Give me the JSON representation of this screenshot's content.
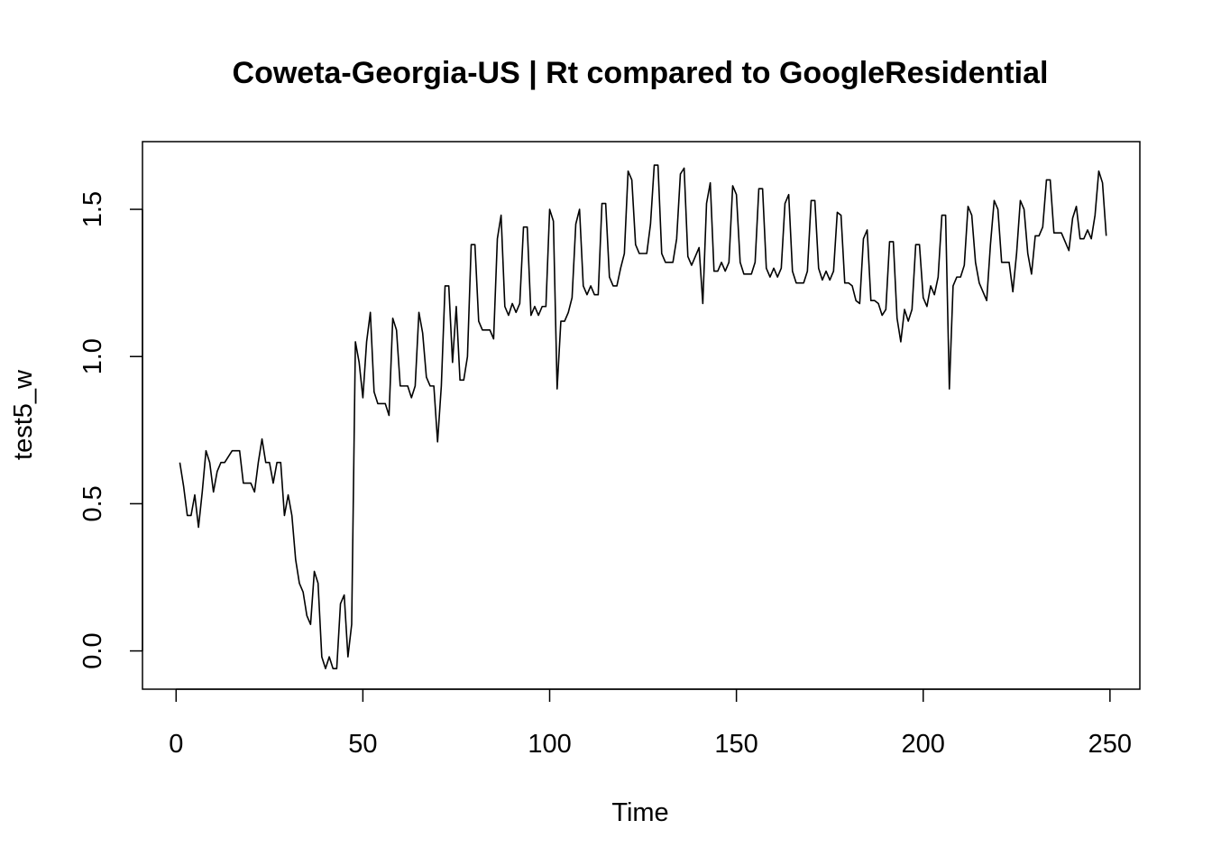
{
  "chart_data": {
    "type": "line",
    "title": "Coweta-Georgia-US | Rt compared to GoogleResidential",
    "xlabel": "Time",
    "ylabel": "test5_w",
    "xlim": [
      -9,
      258
    ],
    "ylim": [
      -0.13,
      1.73
    ],
    "x_ticks": [
      0,
      50,
      100,
      150,
      200,
      250
    ],
    "x_tick_labels": [
      "0",
      "50",
      "100",
      "150",
      "200",
      "250"
    ],
    "y_ticks": [
      0.0,
      0.5,
      1.0,
      1.5
    ],
    "y_tick_labels": [
      "0.0",
      "0.5",
      "1.0",
      "1.5"
    ],
    "grid": false,
    "line_color": "#000000",
    "series": [
      {
        "x_start": 1,
        "values": [
          0.64,
          0.56,
          0.46,
          0.46,
          0.53,
          0.42,
          0.54,
          0.68,
          0.64,
          0.54,
          0.61,
          0.64,
          0.64,
          0.66,
          0.68,
          0.68,
          0.68,
          0.57,
          0.57,
          0.57,
          0.54,
          0.64,
          0.72,
          0.64,
          0.64,
          0.57,
          0.64,
          0.64,
          0.46,
          0.53,
          0.46,
          0.31,
          0.23,
          0.2,
          0.12,
          0.09,
          0.27,
          0.23,
          -0.02,
          -0.06,
          -0.02,
          -0.06,
          -0.06,
          0.16,
          0.19,
          -0.02,
          0.09,
          1.05,
          0.98,
          0.86,
          1.05,
          1.15,
          0.88,
          0.84,
          0.84,
          0.84,
          0.8,
          1.13,
          1.09,
          0.9,
          0.9,
          0.9,
          0.86,
          0.9,
          1.15,
          1.08,
          0.93,
          0.9,
          0.9,
          0.71,
          0.9,
          1.24,
          1.24,
          0.98,
          1.17,
          0.92,
          0.92,
          1.0,
          1.38,
          1.38,
          1.12,
          1.09,
          1.09,
          1.09,
          1.06,
          1.4,
          1.48,
          1.17,
          1.14,
          1.18,
          1.15,
          1.18,
          1.44,
          1.44,
          1.14,
          1.17,
          1.14,
          1.17,
          1.17,
          1.5,
          1.46,
          0.89,
          1.12,
          1.12,
          1.15,
          1.2,
          1.45,
          1.5,
          1.24,
          1.21,
          1.24,
          1.21,
          1.21,
          1.52,
          1.52,
          1.27,
          1.24,
          1.24,
          1.3,
          1.35,
          1.63,
          1.6,
          1.38,
          1.35,
          1.35,
          1.35,
          1.45,
          1.65,
          1.65,
          1.35,
          1.32,
          1.32,
          1.32,
          1.4,
          1.62,
          1.64,
          1.34,
          1.31,
          1.34,
          1.37,
          1.18,
          1.52,
          1.59,
          1.29,
          1.29,
          1.32,
          1.29,
          1.32,
          1.58,
          1.55,
          1.32,
          1.28,
          1.28,
          1.28,
          1.32,
          1.57,
          1.57,
          1.3,
          1.27,
          1.3,
          1.27,
          1.3,
          1.52,
          1.55,
          1.29,
          1.25,
          1.25,
          1.25,
          1.29,
          1.53,
          1.53,
          1.3,
          1.26,
          1.29,
          1.26,
          1.29,
          1.49,
          1.48,
          1.25,
          1.25,
          1.24,
          1.19,
          1.18,
          1.4,
          1.43,
          1.19,
          1.19,
          1.18,
          1.14,
          1.16,
          1.39,
          1.39,
          1.13,
          1.05,
          1.16,
          1.12,
          1.16,
          1.38,
          1.38,
          1.2,
          1.17,
          1.24,
          1.21,
          1.27,
          1.48,
          1.48,
          0.89,
          1.24,
          1.27,
          1.27,
          1.31,
          1.51,
          1.48,
          1.32,
          1.25,
          1.22,
          1.19,
          1.38,
          1.53,
          1.5,
          1.32,
          1.32,
          1.32,
          1.22,
          1.35,
          1.53,
          1.5,
          1.35,
          1.28,
          1.41,
          1.41,
          1.44,
          1.6,
          1.6,
          1.42,
          1.42,
          1.42,
          1.39,
          1.36,
          1.47,
          1.51,
          1.4,
          1.4,
          1.43,
          1.4,
          1.48,
          1.63,
          1.59,
          1.41
        ]
      }
    ]
  }
}
